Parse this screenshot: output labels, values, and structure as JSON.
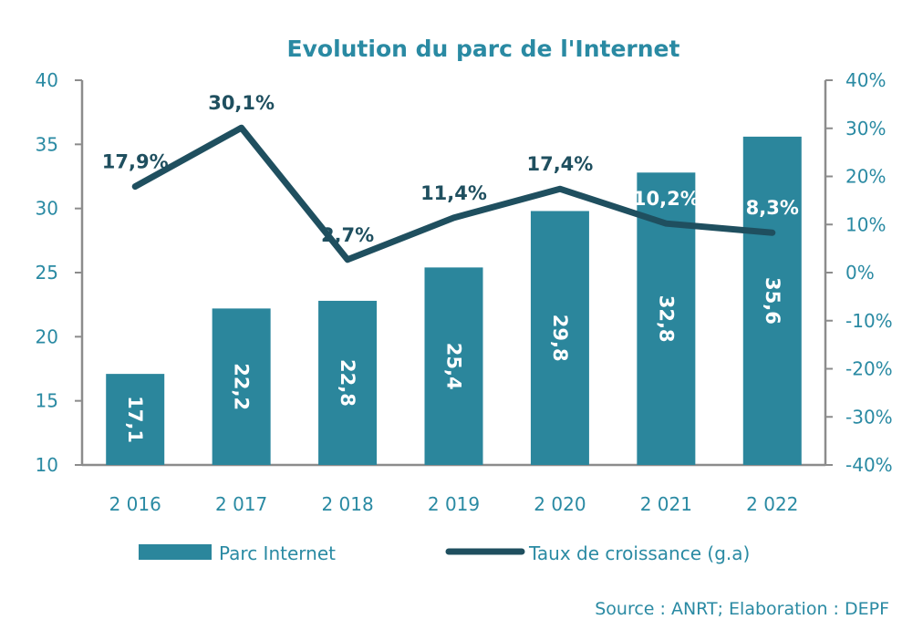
{
  "chart_data": {
    "type": "bar+line",
    "title": "Evolution du parc de l'Internet",
    "categories": [
      "2 016",
      "2 017",
      "2 018",
      "2 019",
      "2 020",
      "2 021",
      "2 022"
    ],
    "series": [
      {
        "name": "Parc Internet",
        "type": "bar",
        "axis": "left",
        "values": [
          17.1,
          22.2,
          22.8,
          25.4,
          29.8,
          32.8,
          35.6
        ],
        "labels": [
          "17,1",
          "22,2",
          "22,8",
          "25,4",
          "29,8",
          "32,8",
          "35,6"
        ]
      },
      {
        "name": "Taux de croissance (g.a)",
        "type": "line",
        "axis": "right",
        "values": [
          17.9,
          30.1,
          2.7,
          11.4,
          17.4,
          10.2,
          8.3
        ],
        "labels": [
          "17,9%",
          "30,1%",
          "2,7%",
          "11,4%",
          "17,4%",
          "10,2%",
          "8,3%"
        ]
      }
    ],
    "left_axis": {
      "range": [
        10,
        40
      ],
      "ticks": [
        "10",
        "15",
        "20",
        "25",
        "30",
        "35",
        "40"
      ]
    },
    "right_axis": {
      "range": [
        -40,
        40
      ],
      "ticks": [
        "-40%",
        "-30%",
        "-20%",
        "-10%",
        "0%",
        "10%",
        "20%",
        "30%",
        "40%"
      ]
    },
    "legend_position": "bottom",
    "grid": false,
    "colors": {
      "bar": "#2b869c",
      "line": "#1f4f5f",
      "text": "#2a8aa3",
      "axis": "#8c8c8c"
    }
  },
  "source": "Source  : ANRT; Elaboration : DEPF"
}
